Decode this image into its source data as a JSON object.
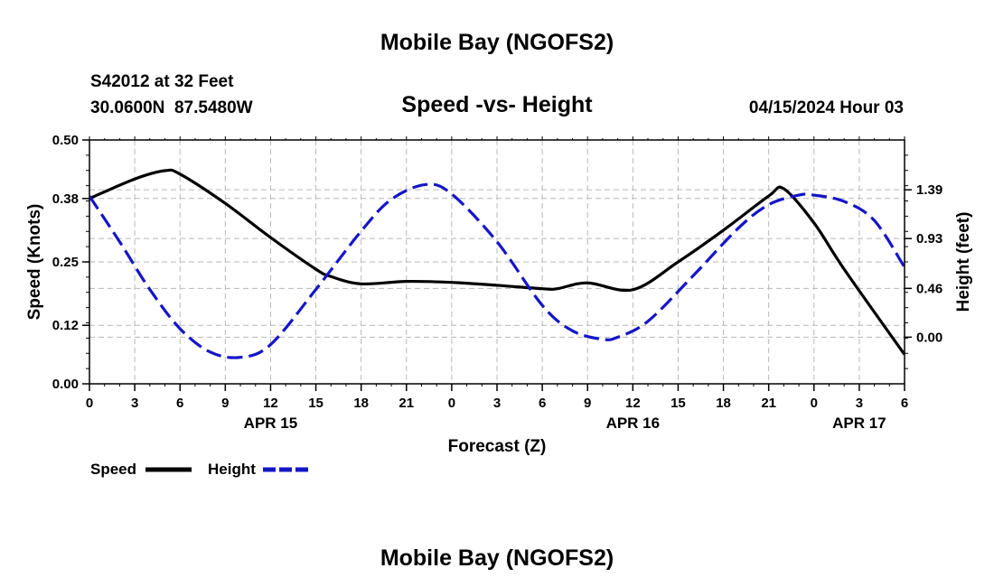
{
  "page_title": "Mobile Bay (NGOFS2)",
  "station_line": "S42012 at 32 Feet",
  "coords": "30.0600N  87.5480W",
  "footer_title": "Mobile Bay (NGOFS2)",
  "colors": {
    "speed": "#000000",
    "height": "#1515c8",
    "grid": "#b8b8b8"
  },
  "chart_data": {
    "type": "line",
    "title": "Speed -vs- Height",
    "subtitle": "04/15/2024 Hour 03",
    "xlabel": "Forecast (Z)",
    "ylabel": "Speed (Knots)",
    "y2label": "Height (feet)",
    "x_hours_range": [
      0,
      54
    ],
    "x_tick_labels": [
      "0",
      "3",
      "6",
      "9",
      "12",
      "15",
      "18",
      "21",
      "0",
      "3",
      "6",
      "9",
      "12",
      "15",
      "18",
      "21",
      "0",
      "3",
      "6"
    ],
    "date_labels": [
      {
        "label": "APR 15",
        "hour": 12
      },
      {
        "label": "APR 16",
        "hour": 36
      },
      {
        "label": "APR 17",
        "hour": 51
      }
    ],
    "y_left": {
      "min": 0,
      "max": 0.5,
      "ticks": [
        "0.00",
        "0.12",
        "0.25",
        "0.38",
        "0.50"
      ]
    },
    "y_right": {
      "min": -0.44,
      "max": 1.86,
      "ticks": [
        {
          "label": "0.00",
          "value": 0.0
        },
        {
          "label": "0.46",
          "value": 0.46
        },
        {
          "label": "0.93",
          "value": 0.93
        },
        {
          "label": "1.39",
          "value": 1.39
        }
      ]
    },
    "legend": [
      {
        "name": "Speed",
        "style": "solid"
      },
      {
        "name": "Height",
        "style": "dashed"
      }
    ],
    "series": [
      {
        "name": "Speed",
        "axis": "left",
        "style": "solid",
        "x": [
          0,
          3,
          5,
          6,
          9,
          12,
          15,
          16,
          18,
          21,
          24,
          27,
          30,
          31,
          33,
          36,
          39,
          42,
          45,
          46,
          48,
          50,
          54
        ],
        "values": [
          0.38,
          0.42,
          0.437,
          0.43,
          0.37,
          0.3,
          0.235,
          0.22,
          0.205,
          0.21,
          0.208,
          0.202,
          0.195,
          0.195,
          0.207,
          0.193,
          0.25,
          0.315,
          0.385,
          0.4,
          0.33,
          0.235,
          0.06
        ]
      },
      {
        "name": "Height",
        "axis": "right",
        "style": "dashed",
        "x": [
          0,
          2,
          4,
          6,
          8,
          10,
          12,
          15,
          18,
          20,
          22.3,
          24,
          27,
          30,
          32,
          34,
          35,
          37,
          40,
          43,
          45,
          47,
          48,
          50,
          52,
          54
        ],
        "values": [
          1.33,
          0.9,
          0.45,
          0.08,
          -0.14,
          -0.19,
          -0.07,
          0.45,
          1.0,
          1.3,
          1.44,
          1.35,
          0.9,
          0.3,
          0.06,
          -0.02,
          0.0,
          0.15,
          0.58,
          1.03,
          1.25,
          1.34,
          1.34,
          1.28,
          1.1,
          0.66
        ]
      }
    ]
  }
}
